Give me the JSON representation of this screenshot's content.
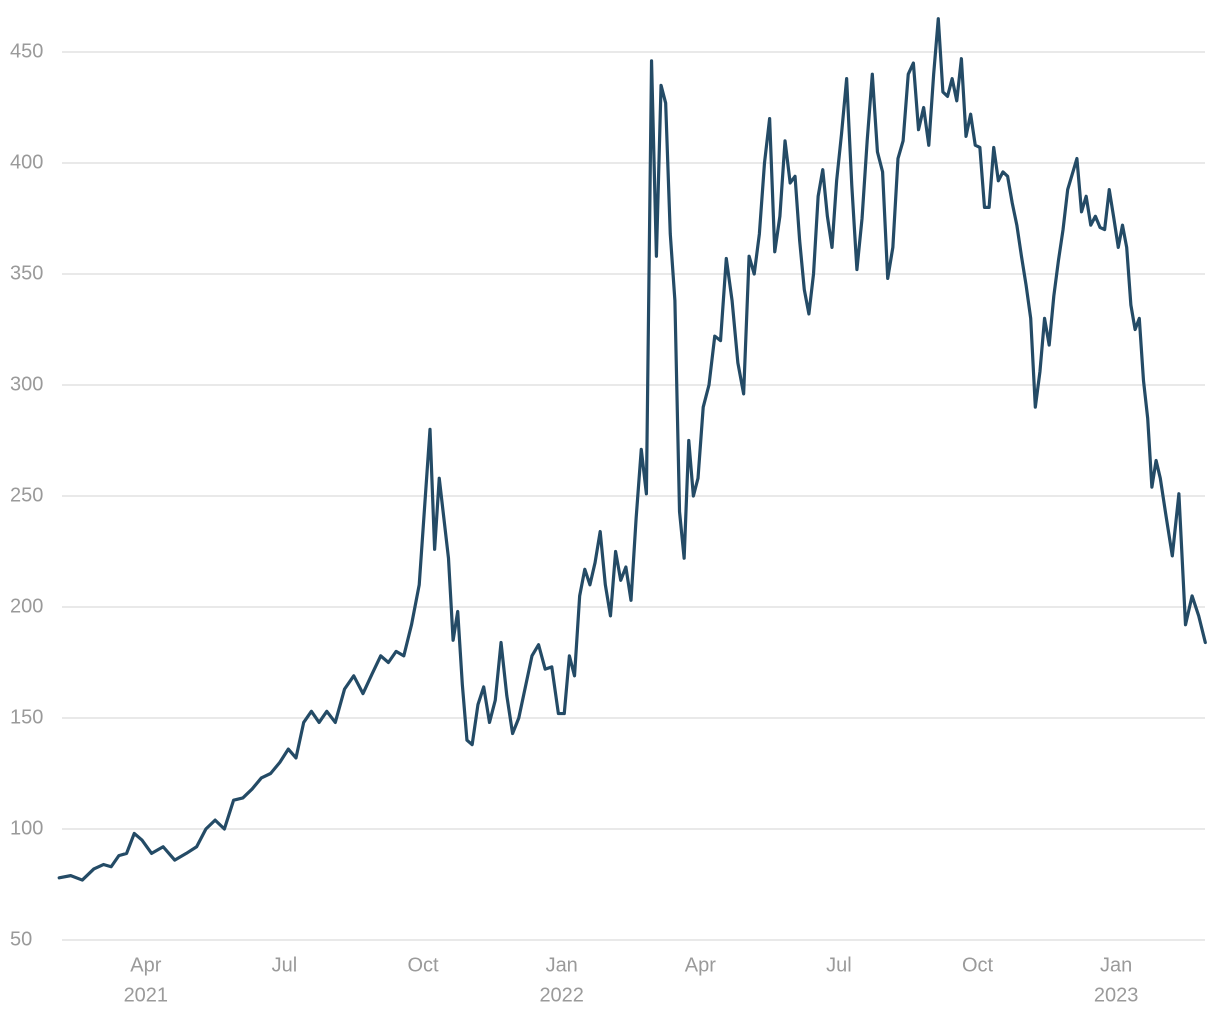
{
  "chart_data": {
    "type": "line",
    "x": [
      "2021-02",
      "2021-02",
      "2021-02",
      "2021-02",
      "2021-03",
      "2021-03",
      "2021-03",
      "2021-03",
      "2021-03",
      "2021-03",
      "2021-04",
      "2021-04",
      "2021-04",
      "2021-04",
      "2021-05",
      "2021-05",
      "2021-05",
      "2021-05",
      "2021-05",
      "2021-06",
      "2021-06",
      "2021-06",
      "2021-06",
      "2021-06",
      "2021-07",
      "2021-07",
      "2021-07",
      "2021-07",
      "2021-07",
      "2021-07",
      "2021-08",
      "2021-08",
      "2021-08",
      "2021-08",
      "2021-08",
      "2021-09",
      "2021-09",
      "2021-09",
      "2021-09",
      "2021-09",
      "2021-09",
      "2021-10",
      "2021-10",
      "2021-10",
      "2021-10",
      "2021-10",
      "2021-10",
      "2021-10",
      "2021-10",
      "2021-10",
      "2021-10",
      "2021-11",
      "2021-11",
      "2021-11",
      "2021-11",
      "2021-11",
      "2021-11",
      "2021-11",
      "2021-11",
      "2021-12",
      "2021-12",
      "2021-12",
      "2021-12",
      "2021-12",
      "2021-12",
      "2021-12",
      "2022-01",
      "2022-01",
      "2022-01",
      "2022-01",
      "2022-01",
      "2022-01",
      "2022-01",
      "2022-01",
      "2022-01",
      "2022-02",
      "2022-02",
      "2022-02",
      "2022-02",
      "2022-02",
      "2022-02",
      "2022-02",
      "2022-02",
      "2022-02",
      "2022-03",
      "2022-03",
      "2022-03",
      "2022-03",
      "2022-03",
      "2022-03",
      "2022-03",
      "2022-03",
      "2022-03",
      "2022-03",
      "2022-04",
      "2022-04",
      "2022-04",
      "2022-04",
      "2022-04",
      "2022-04",
      "2022-04",
      "2022-04",
      "2022-05",
      "2022-05",
      "2022-05",
      "2022-05",
      "2022-05",
      "2022-05",
      "2022-05",
      "2022-05",
      "2022-05",
      "2022-06",
      "2022-06",
      "2022-06",
      "2022-06",
      "2022-06",
      "2022-06",
      "2022-06",
      "2022-06",
      "2022-06",
      "2022-06",
      "2022-07",
      "2022-07",
      "2022-07",
      "2022-07",
      "2022-07",
      "2022-07",
      "2022-07",
      "2022-07",
      "2022-07",
      "2022-08",
      "2022-08",
      "2022-08",
      "2022-08",
      "2022-08",
      "2022-08",
      "2022-08",
      "2022-08",
      "2022-08",
      "2022-09",
      "2022-09",
      "2022-09",
      "2022-09",
      "2022-09",
      "2022-09",
      "2022-09",
      "2022-09",
      "2022-09",
      "2022-09",
      "2022-10",
      "2022-10",
      "2022-10",
      "2022-10",
      "2022-10",
      "2022-10",
      "2022-10",
      "2022-10",
      "2022-10",
      "2022-10",
      "2022-11",
      "2022-11",
      "2022-11",
      "2022-11",
      "2022-11",
      "2022-11",
      "2022-11",
      "2022-11",
      "2022-11",
      "2022-11",
      "2022-12",
      "2022-12",
      "2022-12",
      "2022-12",
      "2022-12",
      "2022-12",
      "2022-12",
      "2022-12",
      "2022-12",
      "2022-12",
      "2023-01",
      "2023-01",
      "2023-01",
      "2023-01",
      "2023-01",
      "2023-01",
      "2023-01",
      "2023-01",
      "2023-01",
      "2023-01",
      "2023-01",
      "2023-02",
      "2023-02",
      "2023-02",
      "2023-02",
      "2023-02",
      "2023-02",
      "2023-02"
    ],
    "series": [
      {
        "color": "#244b66",
        "values": [
          78,
          79,
          77,
          82,
          84,
          83,
          88,
          89,
          98,
          95,
          89,
          92,
          86,
          89,
          92,
          100,
          104,
          100,
          113,
          114,
          118,
          123,
          125,
          130,
          136,
          132,
          148,
          153,
          148,
          153,
          148,
          163,
          169,
          161,
          170,
          178,
          175,
          180,
          178,
          192,
          210,
          250,
          280,
          226,
          258,
          240,
          222,
          185,
          198,
          165,
          140,
          138,
          156,
          164,
          148,
          158,
          184,
          160,
          143,
          150,
          164,
          178,
          183,
          172,
          173,
          152,
          152,
          178,
          169,
          205,
          217,
          210,
          220,
          234,
          210,
          196,
          225,
          212,
          218,
          203,
          240,
          271,
          251,
          446,
          358,
          435,
          427,
          368,
          338,
          243,
          222,
          275,
          250,
          258,
          290,
          300,
          322,
          320,
          357,
          338,
          310,
          296,
          358,
          350,
          368,
          400,
          420,
          360,
          376,
          410,
          391,
          394,
          365,
          343,
          332,
          350,
          385,
          397,
          376,
          362,
          392,
          413,
          438,
          390,
          352,
          375,
          410,
          440,
          405,
          396,
          348,
          362,
          402,
          410,
          440,
          445,
          415,
          425,
          408,
          440,
          465,
          432,
          430,
          438,
          428,
          447,
          412,
          422,
          408,
          407,
          380,
          380,
          407,
          392,
          396,
          394,
          382,
          372,
          358,
          345,
          330,
          290,
          306,
          330,
          318,
          340,
          356,
          370,
          388,
          395,
          402,
          378,
          385,
          372,
          376,
          371,
          370,
          388,
          375,
          362,
          372,
          362,
          336,
          325,
          330,
          302,
          285,
          254,
          266,
          258,
          242,
          223,
          251,
          192,
          205,
          196,
          184
        ]
      }
    ],
    "xlim": [
      "2021-02",
      "2023-03"
    ],
    "xticks": [
      {
        "value": "2021-04",
        "label": "Apr",
        "year": "2021"
      },
      {
        "value": "2021-07",
        "label": "Jul"
      },
      {
        "value": "2021-10",
        "label": "Oct"
      },
      {
        "value": "2022-01",
        "label": "Jan",
        "year": "2022"
      },
      {
        "value": "2022-04",
        "label": "Apr"
      },
      {
        "value": "2022-07",
        "label": "Jul"
      },
      {
        "value": "2022-10",
        "label": "Oct"
      },
      {
        "value": "2023-01",
        "label": "Jan",
        "year": "2023"
      }
    ],
    "ylim": [
      50,
      450
    ],
    "yticks": [
      50,
      100,
      150,
      200,
      250,
      300,
      350,
      400,
      450
    ],
    "grid": true
  }
}
